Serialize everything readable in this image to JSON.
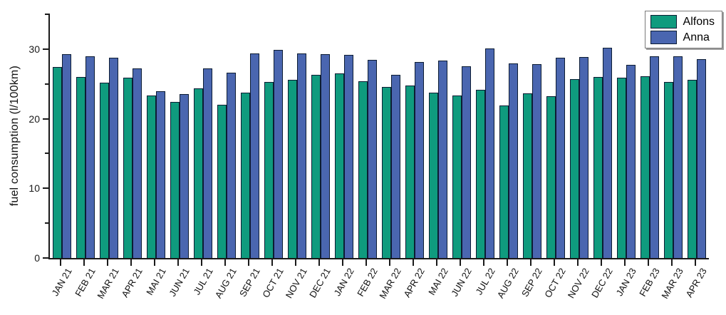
{
  "chart_data": {
    "type": "bar",
    "title": "",
    "xlabel": "",
    "ylabel": "fuel consumption (l/100km)",
    "ylim": [
      0,
      35.1
    ],
    "yticks_major": [
      0,
      10,
      20,
      30
    ],
    "yticks_minor": [
      5,
      15,
      25,
      35
    ],
    "grid": "off",
    "legend_position": "top-right",
    "axis_color": "#1A1A1A",
    "bar_outline_color": "#0C1C33",
    "categories": [
      "JAN 21",
      "FEB 21",
      "MAR 21",
      "APR 21",
      "MAI 21",
      "JUN 21",
      "JUL 21",
      "AUG 21",
      "SEP 21",
      "OCT 21",
      "NOV 21",
      "DEC 21",
      "JAN 22",
      "FEB 22",
      "MAR 22",
      "APR 22",
      "MAI 22",
      "JUN 22",
      "JUL 22",
      "AUG 22",
      "SEP 22",
      "OCT 22",
      "NOV 22",
      "DEC 22",
      "JAN 23",
      "FEB 23",
      "MAR 23",
      "APR 23"
    ],
    "series": [
      {
        "name": "Alfons",
        "color": "#0F9B7E",
        "values": [
          27.4,
          26.0,
          25.2,
          25.9,
          23.3,
          22.4,
          24.4,
          22.0,
          23.7,
          25.3,
          25.6,
          26.3,
          26.5,
          25.4,
          24.6,
          24.8,
          23.7,
          23.3,
          24.2,
          21.9,
          23.6,
          23.2,
          25.7,
          26.0,
          25.9,
          26.1,
          25.3,
          25.6
        ]
      },
      {
        "name": "Anna",
        "color": "#4A66B0",
        "values": [
          29.3,
          29.0,
          28.8,
          27.2,
          24.0,
          23.5,
          27.2,
          26.6,
          29.4,
          29.9,
          29.4,
          29.3,
          29.2,
          28.5,
          26.3,
          28.1,
          28.4,
          27.5,
          30.1,
          27.9,
          27.8,
          28.8,
          28.9,
          30.2,
          27.7,
          29.0,
          29.0,
          28.6
        ]
      }
    ]
  }
}
